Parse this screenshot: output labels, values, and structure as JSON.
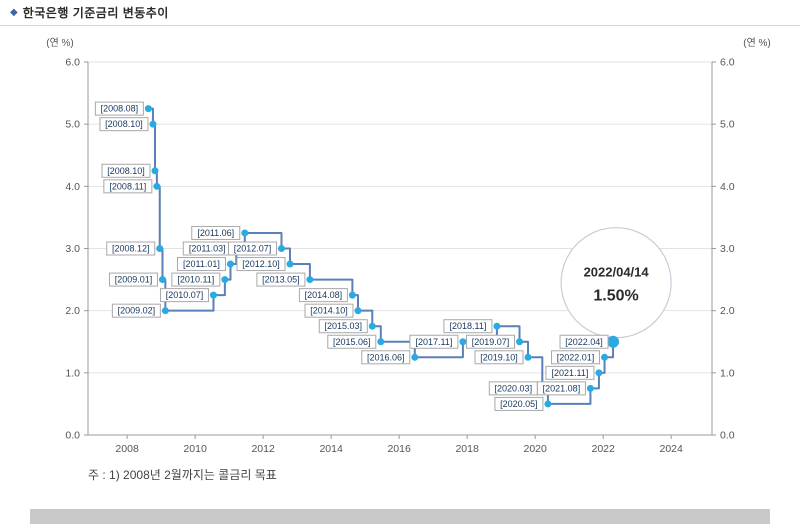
{
  "header": {
    "bullet": "◆",
    "title": "한국은행 기준금리 변동추이"
  },
  "footnote": "주 : 1) 2008년 2월까지는 콜금리 목표",
  "chart_data": {
    "type": "line",
    "step": true,
    "title": "한국은행 기준금리 변동추이",
    "y_unit_label": "(연 %)",
    "ylim": [
      0,
      6
    ],
    "yticks": [
      0,
      1,
      2,
      3,
      4,
      5,
      6
    ],
    "xlim": [
      2006.85,
      2025.2
    ],
    "xticks": [
      2008,
      2010,
      2012,
      2014,
      2016,
      2018,
      2020,
      2022,
      2024
    ],
    "grid": "horizontal",
    "legend": "none",
    "colors": {
      "line": "#5b7fb9",
      "marker": "#29abe2",
      "label_text": "#17375e",
      "label_border": "#a8a8a8",
      "axis": "#999999",
      "grid": "#e2e2e2",
      "annotation_border": "#c5cdd8",
      "annotation_text": "#2b2b2b"
    },
    "points": [
      {
        "label": "[2008.08]",
        "x": 2008.625,
        "y": 5.25
      },
      {
        "label": "[2008.10]",
        "x": 2008.76,
        "y": 5.0
      },
      {
        "label": "[2008.10]",
        "x": 2008.82,
        "y": 4.25
      },
      {
        "label": "[2008.11]",
        "x": 2008.875,
        "y": 4.0
      },
      {
        "label": "[2008.12]",
        "x": 2008.96,
        "y": 3.0
      },
      {
        "label": "[2009.01]",
        "x": 2009.04,
        "y": 2.5
      },
      {
        "label": "[2009.02]",
        "x": 2009.125,
        "y": 2.0
      },
      {
        "label": "[2010.07]",
        "x": 2010.54,
        "y": 2.25
      },
      {
        "label": "[2010.11]",
        "x": 2010.875,
        "y": 2.5
      },
      {
        "label": "[2011.01]",
        "x": 2011.04,
        "y": 2.75
      },
      {
        "label": "[2011.03]",
        "x": 2011.21,
        "y": 3.0
      },
      {
        "label": "[2011.06]",
        "x": 2011.46,
        "y": 3.25
      },
      {
        "label": "[2012.07]",
        "x": 2012.54,
        "y": 3.0
      },
      {
        "label": "[2012.10]",
        "x": 2012.79,
        "y": 2.75
      },
      {
        "label": "[2013.05]",
        "x": 2013.375,
        "y": 2.5
      },
      {
        "label": "[2014.08]",
        "x": 2014.625,
        "y": 2.25
      },
      {
        "label": "[2014.10]",
        "x": 2014.79,
        "y": 2.0
      },
      {
        "label": "[2015.03]",
        "x": 2015.21,
        "y": 1.75
      },
      {
        "label": "[2015.06]",
        "x": 2015.46,
        "y": 1.5
      },
      {
        "label": "[2016.06]",
        "x": 2016.46,
        "y": 1.25
      },
      {
        "label": "[2017.11]",
        "x": 2017.875,
        "y": 1.5
      },
      {
        "label": "[2018.11]",
        "x": 2018.875,
        "y": 1.75
      },
      {
        "label": "[2019.07]",
        "x": 2019.54,
        "y": 1.5
      },
      {
        "label": "[2019.10]",
        "x": 2019.79,
        "y": 1.25
      },
      {
        "label": "[2020.03]",
        "x": 2020.21,
        "y": 0.75
      },
      {
        "label": "[2020.05]",
        "x": 2020.375,
        "y": 0.5
      },
      {
        "label": "[2021.08]",
        "x": 2021.625,
        "y": 0.75
      },
      {
        "label": "[2021.11]",
        "x": 2021.875,
        "y": 1.0
      },
      {
        "label": "[2022.01]",
        "x": 2022.04,
        "y": 1.25
      },
      {
        "label": "[2022.04]",
        "x": 2022.29,
        "y": 1.5
      }
    ],
    "annotation": {
      "date": "2022/04/14",
      "rate": "1.50%",
      "cx": 2022.38,
      "cy": 2.45,
      "r": 55
    }
  }
}
